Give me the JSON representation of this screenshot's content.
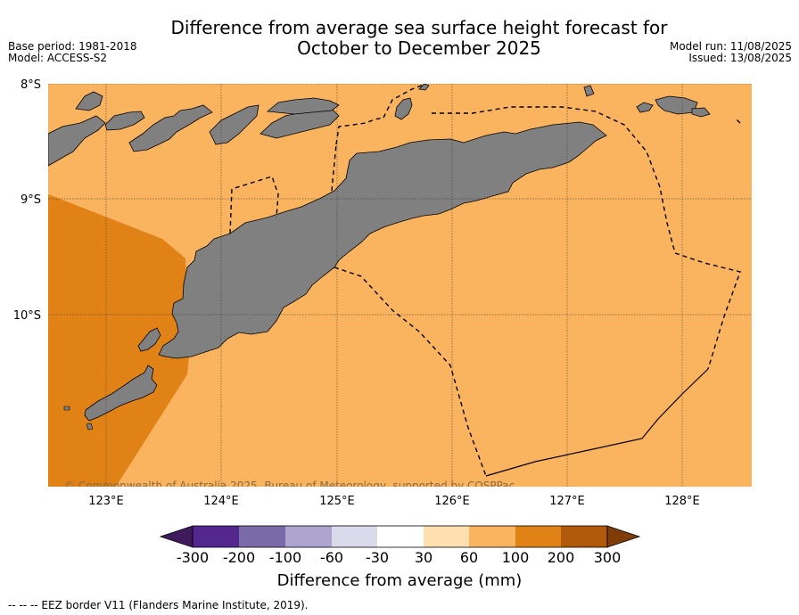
{
  "title": {
    "line1": "Difference from average sea surface height forecast for",
    "line2": "October to December 2025"
  },
  "meta_left": {
    "base_period": "Base period: 1981-2018",
    "model": "Model: ACCESS-S2"
  },
  "meta_right": {
    "model_run": "Model run: 11/08/2025",
    "issued": "Issued: 13/08/2025"
  },
  "map": {
    "lat_labels": [
      "8°S",
      "9°S",
      "10°S"
    ],
    "lon_labels": [
      "123°E",
      "124°E",
      "125°E",
      "126°E",
      "127°E",
      "128°E"
    ],
    "copyright": "© Commonwealth of Australia 2025, Bureau of Meteorology, supported by COSPPac",
    "land_color": "#808080",
    "eez_style": "dashed"
  },
  "colorbar": {
    "ticks": [
      "-300",
      "-200",
      "-100",
      "-60",
      "-30",
      "30",
      "60",
      "100",
      "200",
      "300"
    ],
    "colors": [
      "#3f1a5c",
      "#54278f",
      "#7b6aa8",
      "#ada5cf",
      "#d9daeb",
      "#ffffff",
      "#fddfb0",
      "#fab35e",
      "#e08216",
      "#b15a0c",
      "#7f3b08"
    ],
    "title": "Difference from average (mm)"
  },
  "footnote": "--  --  -- EEZ border V11 (Flanders Marine Institute, 2019)."
}
